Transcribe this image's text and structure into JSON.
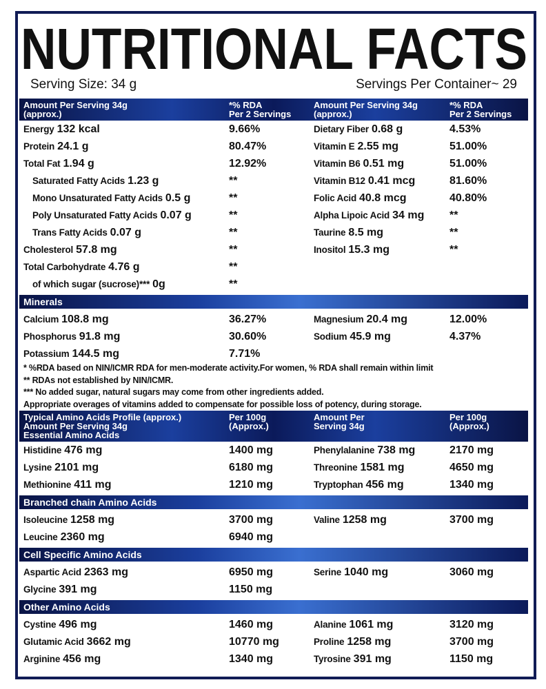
{
  "title": "NUTRITIONAL FACTS",
  "serving_size": "Serving Size: 34 g",
  "servings_per_container": "Servings Per Container~ 29",
  "blocks": [
    {
      "header": [
        [
          "Amount Per Serving 34g",
          "(approx.)"
        ],
        [
          "*% RDA",
          "Per 2 Servings"
        ],
        [
          "Amount Per Serving 34g",
          "(approx.)"
        ],
        [
          "*% RDA",
          "Per 2 Servings"
        ]
      ]
    },
    {
      "rows": [
        {
          "left": {
            "name": "Energy",
            "amount": "132 kcal",
            "value": "9.66%"
          },
          "right": {
            "name": "Dietary Fiber",
            "amount": "0.68 g",
            "value": "4.53%"
          }
        },
        {
          "left": {
            "name": "Protein",
            "amount": "24.1 g",
            "value": "80.47%"
          },
          "right": {
            "name": "Vitamin E",
            "amount": "2.55 mg",
            "value": "51.00%"
          }
        },
        {
          "left": {
            "name": "Total Fat",
            "amount": "1.94 g",
            "value": "12.92%"
          },
          "right": {
            "name": "Vitamin B6",
            "amount": "0.51 mg",
            "value": "51.00%"
          }
        },
        {
          "left": {
            "name": "Saturated Fatty Acids",
            "amount": "1.23 g",
            "value": "**",
            "sub": true
          },
          "right": {
            "name": "Vitamin B12",
            "amount": "0.41 mcg",
            "value": "81.60%"
          }
        },
        {
          "left": {
            "name": "Mono Unsaturated Fatty Acids",
            "amount": "0.5 g",
            "value": "**",
            "sub": true
          },
          "right": {
            "name": "Folic Acid",
            "amount": "40.8 mcg",
            "value": "40.80%"
          }
        },
        {
          "left": {
            "name": "Poly Unsaturated Fatty Acids",
            "amount": "0.07 g",
            "value": "**",
            "sub": true
          },
          "right": {
            "name": "Alpha Lipoic Acid",
            "amount": "34 mg",
            "value": "**"
          }
        },
        {
          "left": {
            "name": "Trans Fatty Acids",
            "amount": "0.07 g",
            "value": "**",
            "sub": true
          },
          "right": {
            "name": "Taurine",
            "amount": "8.5 mg",
            "value": "**"
          }
        },
        {
          "left": {
            "name": "Cholesterol",
            "amount": "57.8 mg",
            "value": "**"
          },
          "right": {
            "name": "Inositol",
            "amount": "15.3 mg",
            "value": "**"
          }
        },
        {
          "left": {
            "name": "Total Carbohydrate",
            "amount": "4.76 g",
            "value": "**"
          }
        },
        {
          "left": {
            "name": "of which sugar (sucrose)***",
            "amount": "0g",
            "value": "**",
            "sub": true
          }
        }
      ]
    },
    {
      "band": "Minerals"
    },
    {
      "rows": [
        {
          "left": {
            "name": "Calcium",
            "amount": "108.8 mg",
            "value": "36.27%"
          },
          "right": {
            "name": "Magnesium",
            "amount": "20.4 mg",
            "value": "12.00%"
          }
        },
        {
          "left": {
            "name": "Phosphorus",
            "amount": "91.8 mg",
            "value": "30.60%"
          },
          "right": {
            "name": "Sodium",
            "amount": "45.9 mg",
            "value": "4.37%"
          }
        },
        {
          "left": {
            "name": "Potassium",
            "amount": "144.5 mg",
            "value": "7.71%"
          }
        }
      ]
    },
    {
      "notes": [
        "* %RDA based on NIN/ICMR RDA for men-moderate activity.For women, % RDA shall remain within limit",
        "** RDAs not established by NIN/ICMR.",
        "***  No added sugar, natural sugars may come from other ingredients added.",
        "Appropriate overages of vitamins added to compensate for possible loss of potency, during storage."
      ]
    },
    {
      "header": [
        [
          "Typical Amino Acids Profile (approx.)",
          "Amount Per Serving 34g",
          "Essential Amino Acids"
        ],
        [
          "Per 100g",
          "(Approx.)"
        ],
        [
          "Amount Per",
          "Serving 34g"
        ],
        [
          "Per 100g",
          "(Approx.)"
        ]
      ]
    },
    {
      "rows": [
        {
          "left": {
            "name": "Histidine",
            "amount": "476 mg",
            "value": "1400 mg"
          },
          "right": {
            "name": "Phenylalanine",
            "amount": "738 mg",
            "value": "2170 mg"
          }
        },
        {
          "left": {
            "name": "Lysine",
            "amount": "2101 mg",
            "value": "6180 mg"
          },
          "right": {
            "name": "Threonine",
            "amount": "1581 mg",
            "value": "4650 mg"
          }
        },
        {
          "left": {
            "name": "Methionine",
            "amount": "411 mg",
            "value": "1210 mg"
          },
          "right": {
            "name": "Tryptophan",
            "amount": "456 mg",
            "value": "1340 mg"
          }
        }
      ]
    },
    {
      "band": "Branched chain Amino Acids"
    },
    {
      "rows": [
        {
          "left": {
            "name": "Isoleucine",
            "amount": "1258 mg",
            "value": "3700 mg"
          },
          "right": {
            "name": "Valine",
            "amount": "1258 mg",
            "value": "3700 mg"
          }
        },
        {
          "left": {
            "name": "Leucine",
            "amount": "2360 mg",
            "value": "6940 mg"
          }
        }
      ]
    },
    {
      "band": "Cell Specific Amino Acids"
    },
    {
      "rows": [
        {
          "left": {
            "name": "Aspartic Acid",
            "amount": "2363 mg",
            "value": "6950 mg"
          },
          "right": {
            "name": "Serine",
            "amount": "1040 mg",
            "value": "3060 mg"
          }
        },
        {
          "left": {
            "name": "Glycine",
            "amount": "391 mg",
            "value": "1150 mg"
          }
        }
      ]
    },
    {
      "band": "Other Amino Acids"
    },
    {
      "rows": [
        {
          "left": {
            "name": "Cystine",
            "amount": "496 mg",
            "value": "1460 mg"
          },
          "right": {
            "name": "Alanine",
            "amount": "1061 mg",
            "value": "3120 mg"
          }
        },
        {
          "left": {
            "name": "Glutamic Acid",
            "amount": "3662 mg",
            "value": "10770 mg"
          },
          "right": {
            "name": "Proline",
            "amount": "1258 mg",
            "value": "3700 mg"
          }
        },
        {
          "left": {
            "name": "Arginine",
            "amount": "456 mg",
            "value": "1340 mg"
          },
          "right": {
            "name": "Tyrosine",
            "amount": "391 mg",
            "value": "1150 mg"
          }
        }
      ]
    }
  ]
}
